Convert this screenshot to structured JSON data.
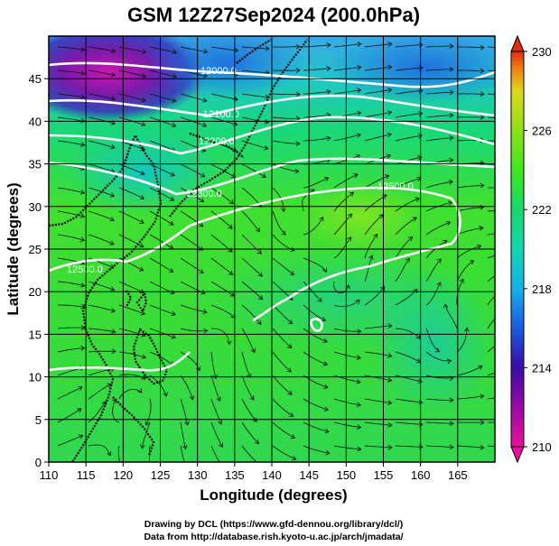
{
  "title": "GSM 12Z27Sep2024 (200.0hPa)",
  "xlabel": "Longitude (degrees)",
  "ylabel": "Latitude  (degrees)",
  "x_ticks": [
    "110",
    "115",
    "120",
    "125",
    "130",
    "135",
    "140",
    "145",
    "150",
    "155",
    "160",
    "165"
  ],
  "y_ticks": [
    "0",
    "5",
    "10",
    "15",
    "20",
    "25",
    "30",
    "35",
    "40",
    "45"
  ],
  "xlim": [
    110,
    170
  ],
  "ylim": [
    0,
    50
  ],
  "colorbar": {
    "ticks": [
      "210",
      "214",
      "218",
      "222",
      "226",
      "230"
    ],
    "min": 210,
    "max": 230,
    "colors": [
      "#e8109a",
      "#9a0aa6",
      "#3a0aa8",
      "#1a5ae0",
      "#16b0e8",
      "#10d8b0",
      "#18d86a",
      "#3ee81a",
      "#8ee018",
      "#e0d81a",
      "#f07a12",
      "#e02a14"
    ]
  },
  "contour_labels": [
    "12000.0",
    "12100.0",
    "12200.0",
    "12300.0",
    "12500.0",
    "12500.0"
  ],
  "credits": [
    "Drawing by DCL (https://www.gfd-dennou.org/library/dcl/)",
    "Data from http://database.rish.kyoto-u.ac.jp/arch/jmadata/"
  ]
}
